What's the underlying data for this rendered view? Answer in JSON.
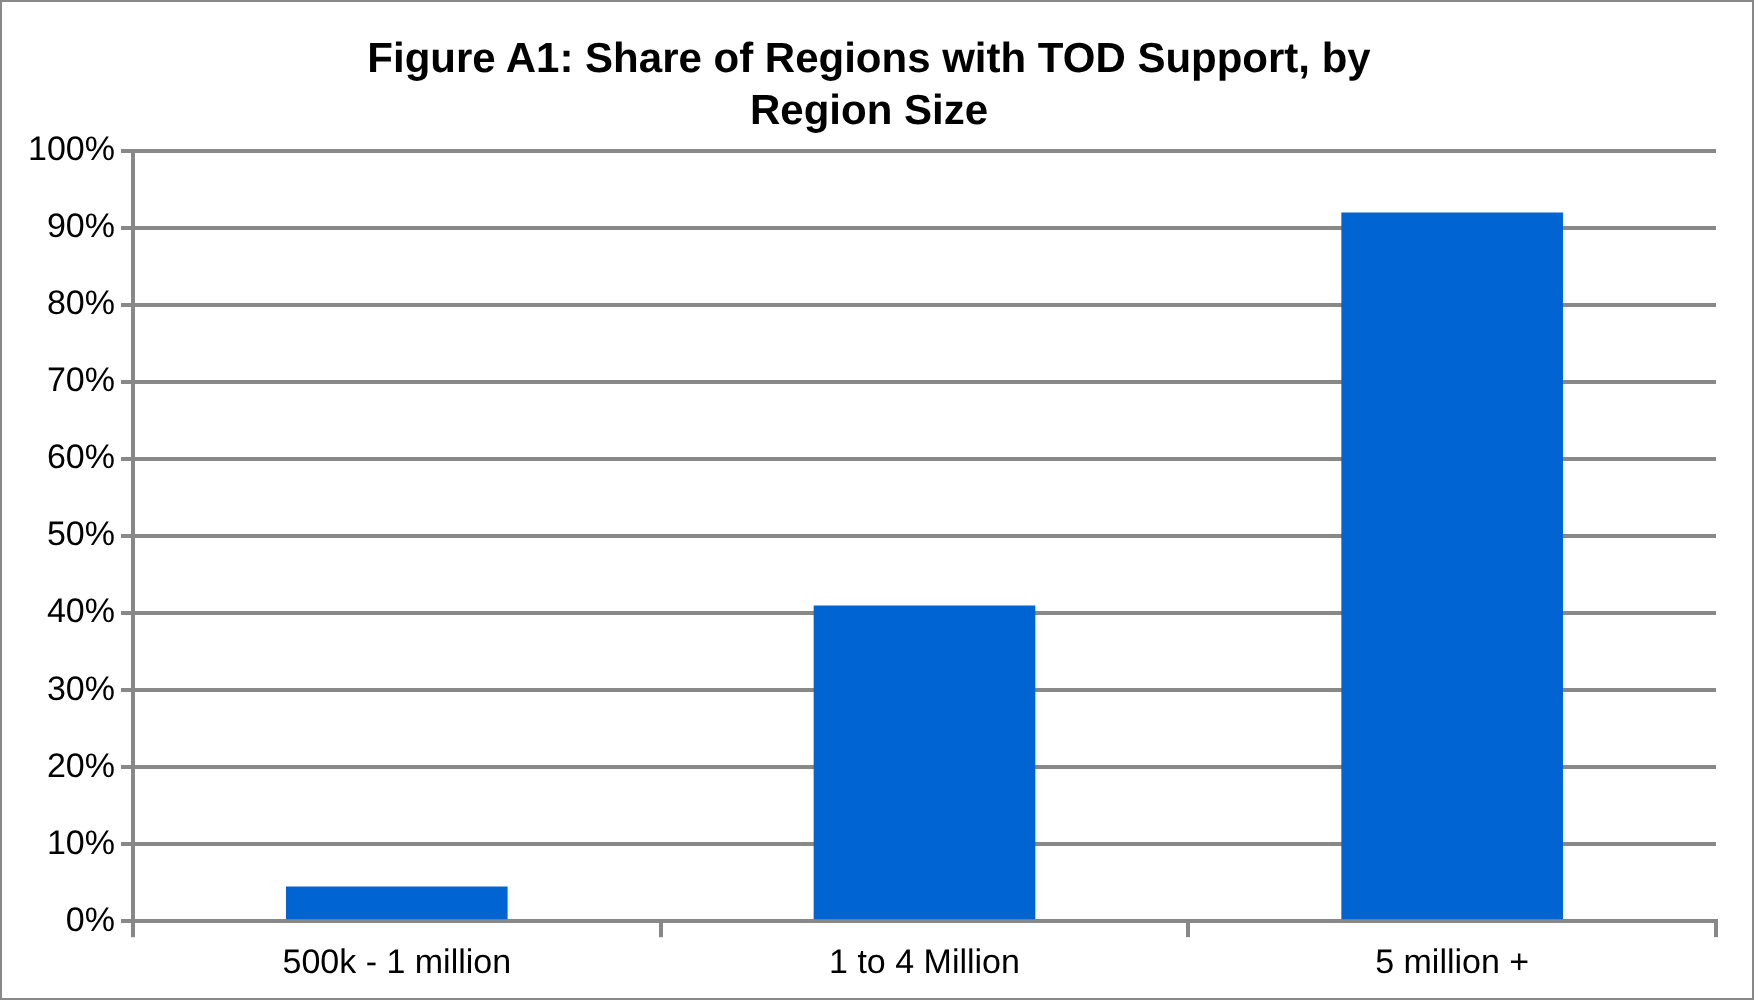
{
  "chart_data": {
    "type": "bar",
    "title": "Figure A1: Share of Regions with TOD Support, by Region Size",
    "categories": [
      "500k - 1 million",
      "1 to 4 Million",
      "5 million +"
    ],
    "values": [
      4.5,
      41,
      92
    ],
    "color": "#0064d2",
    "ylim": [
      0,
      100
    ],
    "yticks": [
      {
        "value": 0,
        "label": "0%"
      },
      {
        "value": 10,
        "label": "10%"
      },
      {
        "value": 20,
        "label": "20%"
      },
      {
        "value": 30,
        "label": "30%"
      },
      {
        "value": 40,
        "label": "40%"
      },
      {
        "value": 50,
        "label": "50%"
      },
      {
        "value": 60,
        "label": "60%"
      },
      {
        "value": 70,
        "label": "70%"
      },
      {
        "value": 80,
        "label": "80%"
      },
      {
        "value": 90,
        "label": "90%"
      },
      {
        "value": 100,
        "label": "100%"
      }
    ],
    "grid": "y",
    "legend": false
  }
}
